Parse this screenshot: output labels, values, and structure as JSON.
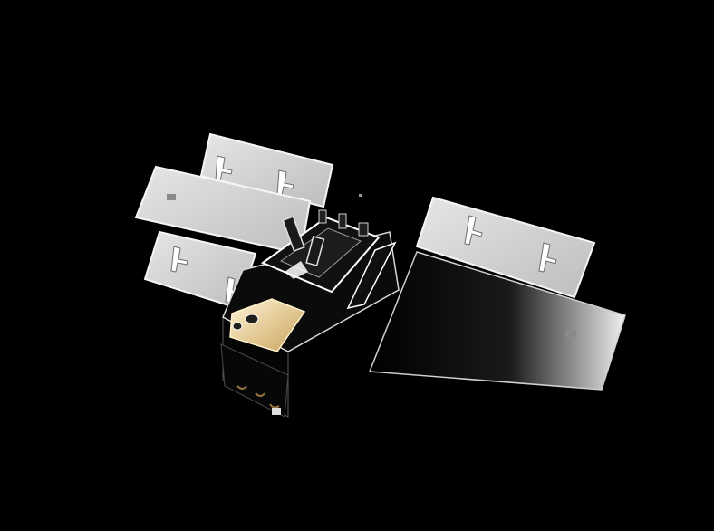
{
  "scene": {
    "subject": "satellite-model",
    "background_color": "#000000",
    "panel_color": "#d9d9d9",
    "panel_edge_color": "#f2f2f2",
    "body_color": "#0d0d0d",
    "body_edge_color": "#ffffff",
    "instrument_color": "#e8c98a"
  }
}
